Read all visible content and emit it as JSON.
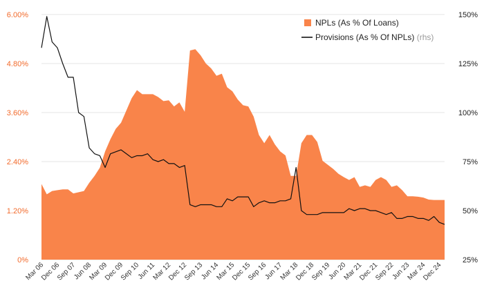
{
  "chart_data": {
    "type": "area",
    "title": "",
    "legend_position": "top-right",
    "x": [
      "Mar 06",
      "Jun 06",
      "Sep 06",
      "Dec 06",
      "Mar 07",
      "Jun 07",
      "Sep 07",
      "Dec 07",
      "Mar 08",
      "Jun 08",
      "Sep 08",
      "Dec 08",
      "Mar 09",
      "Jun 09",
      "Sep 09",
      "Dec 09",
      "Mar 10",
      "Jun 10",
      "Sep 10",
      "Dec 10",
      "Mar 11",
      "Jun 11",
      "Sep 11",
      "Dec 11",
      "Mar 12",
      "Jun 12",
      "Sep 12",
      "Dec 12",
      "Mar 13",
      "Jun 13",
      "Sep 13",
      "Dec 13",
      "Mar 14",
      "Jun 14",
      "Sep 14",
      "Dec 14",
      "Mar 15",
      "Jun 15",
      "Sep 15",
      "Dec 15",
      "Mar 16",
      "Jun 16",
      "Sep 16",
      "Dec 16",
      "Mar 17",
      "Jun 17",
      "Sep 17",
      "Dec 17",
      "Mar 18",
      "Jun 18",
      "Sep 18",
      "Dec 18",
      "Mar 19",
      "Jun 19",
      "Sep 19",
      "Dec 19",
      "Mar 20",
      "Jun 20",
      "Sep 20",
      "Dec 20",
      "Mar 21",
      "Jun 21",
      "Sep 21",
      "Dec 21",
      "Mar 22",
      "Jun 22",
      "Sep 22",
      "Dec 22",
      "Mar 23",
      "Jun 23",
      "Sep 23",
      "Dec 23",
      "Mar 24",
      "Jun 24",
      "Sep 24",
      "Dec 24",
      "Mar 25"
    ],
    "x_tick_labels": [
      "Mar 06",
      "Dec 06",
      "Sep 07",
      "Jun 08",
      "Mar 09",
      "Dec 09",
      "Sep 10",
      "Jun 11",
      "Mar 12",
      "Dec 12",
      "Sep 13",
      "Jun 14",
      "Mar 15",
      "Dec 15",
      "Sep 16",
      "Jun 17",
      "Mar 18",
      "Dec 18",
      "Sep 19",
      "Jun 20",
      "Mar 21",
      "Dec 21",
      "Sep 22",
      "Jun 23",
      "Mar 24",
      "Dec 24"
    ],
    "series": [
      {
        "name": "NPLs (As % Of Loans)",
        "axis": "left",
        "style": "area",
        "color": "#f9844a",
        "values": [
          1.85,
          1.6,
          1.68,
          1.7,
          1.72,
          1.72,
          1.62,
          1.65,
          1.68,
          1.88,
          2.05,
          2.25,
          2.65,
          2.95,
          3.2,
          3.35,
          3.65,
          3.95,
          4.15,
          4.05,
          4.05,
          4.05,
          3.98,
          3.88,
          3.9,
          3.75,
          3.85,
          3.62,
          5.12,
          5.15,
          5.0,
          4.8,
          4.68,
          4.5,
          4.55,
          4.22,
          4.12,
          3.92,
          3.78,
          3.75,
          3.5,
          3.05,
          2.85,
          3.05,
          2.82,
          2.65,
          2.55,
          2.05,
          2.05,
          2.85,
          3.05,
          3.05,
          2.88,
          2.42,
          2.32,
          2.22,
          2.1,
          2.02,
          1.95,
          2.02,
          1.78,
          1.82,
          1.78,
          1.95,
          2.02,
          1.95,
          1.78,
          1.82,
          1.7,
          1.55,
          1.55,
          1.54,
          1.52,
          1.47,
          1.46,
          1.46,
          1.46
        ]
      },
      {
        "name": "Provisions (As % Of NPLs)",
        "suffix": "(rhs)",
        "axis": "right",
        "style": "line",
        "color": "#111111",
        "values": [
          133,
          149,
          136,
          133,
          125,
          118,
          118,
          100,
          98,
          82,
          79,
          78,
          72,
          79,
          80,
          81,
          79,
          77,
          78,
          78,
          79,
          76,
          75,
          76,
          74,
          74,
          72,
          73,
          53,
          52,
          53,
          53,
          53,
          52,
          52,
          56,
          55,
          57,
          57,
          57,
          52,
          54,
          55,
          54,
          54,
          55,
          55,
          56,
          72,
          50,
          48,
          48,
          48,
          49,
          49,
          49,
          49,
          49,
          51,
          50,
          51,
          51,
          50,
          50,
          49,
          48,
          49,
          46,
          46,
          47,
          47,
          46,
          46,
          45,
          47,
          44,
          43
        ]
      }
    ],
    "y_left": {
      "ylim": [
        0,
        6
      ],
      "ticks": [
        0,
        1.2,
        2.4,
        3.6,
        4.8,
        6.0
      ],
      "tick_labels": [
        "0%",
        "1.20%",
        "2.40%",
        "3.60%",
        "4.80%",
        "6.00%"
      ]
    },
    "y_right": {
      "ylim": [
        25,
        150
      ],
      "ticks": [
        25,
        50,
        75,
        100,
        125,
        150
      ],
      "tick_labels": [
        "25%",
        "50%",
        "75%",
        "100%",
        "125%",
        "150%"
      ]
    },
    "grid": true,
    "colors": {
      "accent": "#f26a2b",
      "area": "#f9844a",
      "line": "#111111",
      "grid": "#e6e6e6"
    }
  }
}
